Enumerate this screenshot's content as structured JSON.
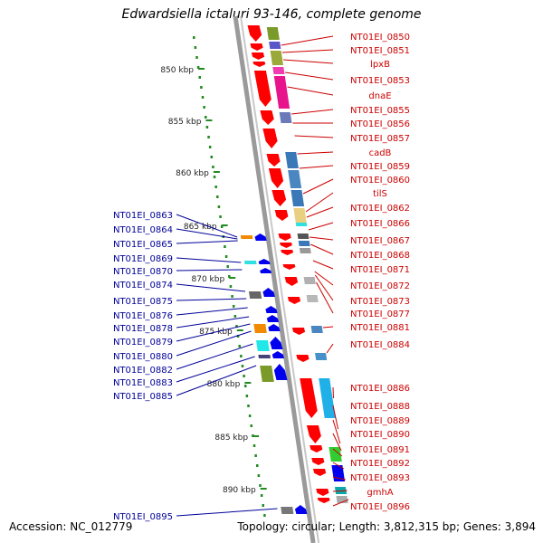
{
  "title": "Edwardsiella ictaluri 93-146, complete genome",
  "footer": {
    "accession": "Accession: NC_012779",
    "summary": "Topology: circular; Length: 3,812,315 bp; Genes: 3,894"
  },
  "ruler": [
    {
      "label": "850 kbp",
      "kbp": 850
    },
    {
      "label": "855 kbp",
      "kbp": 855
    },
    {
      "label": "860 kbp",
      "kbp": 860
    },
    {
      "label": "865 kbp",
      "kbp": 865
    },
    {
      "label": "870 kbp",
      "kbp": 870
    },
    {
      "label": "875 kbp",
      "kbp": 875
    },
    {
      "label": "880 kbp",
      "kbp": 880
    },
    {
      "label": "885 kbp",
      "kbp": 885
    },
    {
      "label": "890 kbp",
      "kbp": 890
    }
  ],
  "colors": {
    "forward_cds": "#ff0000",
    "reverse_cds": "#0000ee",
    "forward_label": "#cc0000",
    "reverse_label": "#000099",
    "ruler": "#228b22"
  },
  "forward_labels": [
    "NT01EI_0850",
    "NT01EI_0851",
    "lpxB",
    "NT01EI_0853",
    "dnaE",
    "NT01EI_0855",
    "NT01EI_0856",
    "NT01EI_0857",
    "cadB",
    "NT01EI_0859",
    "NT01EI_0860",
    "tilS",
    "NT01EI_0862",
    "NT01EI_0866",
    "NT01EI_0867",
    "NT01EI_0868",
    "NT01EI_0871",
    "NT01EI_0872",
    "NT01EI_0873",
    "NT01EI_0877",
    "NT01EI_0881",
    "NT01EI_0884",
    "NT01EI_0886",
    "NT01EI_0888",
    "NT01EI_0889",
    "NT01EI_0890",
    "NT01EI_0891",
    "NT01EI_0892",
    "NT01EI_0893",
    "gmhA",
    "NT01EI_0896"
  ],
  "reverse_labels": [
    "NT01EI_0863",
    "NT01EI_0864",
    "NT01EI_0865",
    "NT01EI_0869",
    "NT01EI_0870",
    "NT01EI_0874",
    "NT01EI_0875",
    "NT01EI_0876",
    "NT01EI_0878",
    "NT01EI_0879",
    "NT01EI_0880",
    "NT01EI_0882",
    "NT01EI_0883",
    "NT01EI_0885",
    "NT01EI_0895"
  ]
}
